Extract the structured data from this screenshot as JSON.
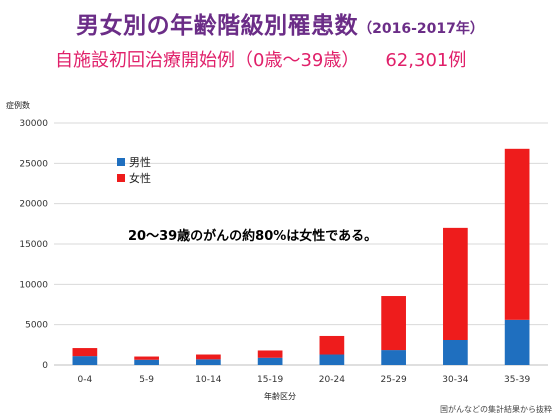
{
  "header": {
    "title": "男女別の年齢階級別罹患数",
    "years": "（2016-2017年）",
    "subtitle": "自施設初回治療開始例（0歳～39歳）",
    "count": "62,301例"
  },
  "annotation": "20～39歳のがんの約80%は女性である。",
  "source": "国がんなどの集計結果から抜粋",
  "colors": {
    "male": "#1f6fbf",
    "female": "#ee1c1c",
    "grid": "#d9d9d9"
  },
  "chart_data": {
    "type": "bar",
    "stacked": true,
    "categories": [
      "0-4",
      "5-9",
      "10-14",
      "15-19",
      "20-24",
      "25-29",
      "30-34",
      "35-39"
    ],
    "series": [
      {
        "name": "男性",
        "values": [
          1100,
          650,
          700,
          900,
          1300,
          1850,
          3100,
          5600
        ]
      },
      {
        "name": "女性",
        "values": [
          1000,
          400,
          600,
          900,
          2300,
          6700,
          13900,
          21200
        ]
      }
    ],
    "ylabel": "症例数",
    "xlabel": "年齢区分",
    "ylim": [
      0,
      30000
    ],
    "yticks": [
      0,
      5000,
      10000,
      15000,
      20000,
      25000,
      30000
    ],
    "grid": true,
    "legend": {
      "position": "top-left",
      "order": [
        "男性",
        "女性"
      ]
    }
  }
}
